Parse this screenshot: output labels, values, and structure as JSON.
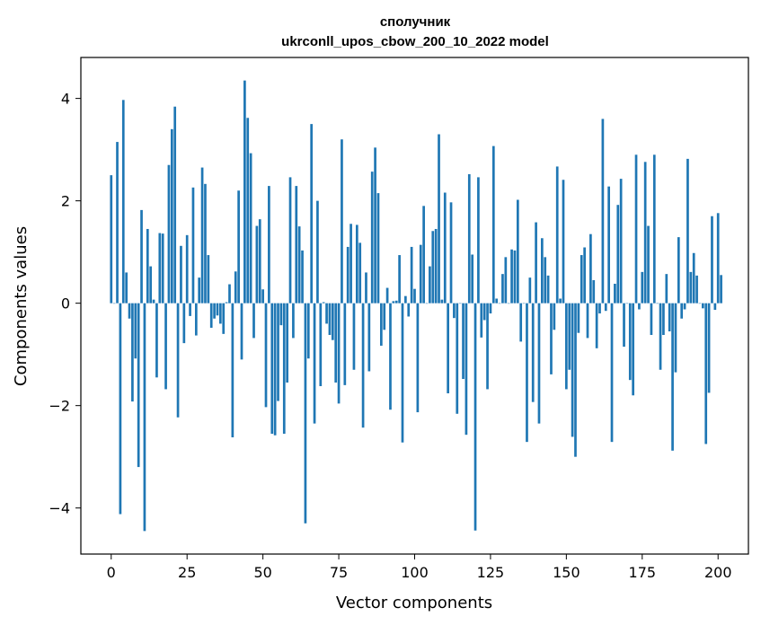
{
  "chart_data": {
    "type": "bar",
    "title": "сполучник",
    "subtitle": "ukrconll_upos_cbow_200_10_2022 model",
    "xlabel": "Vector components",
    "ylabel": "Components values",
    "xlim": [
      -10,
      210
    ],
    "ylim": [
      -4.9,
      4.8
    ],
    "xticks": [
      0,
      25,
      50,
      75,
      100,
      125,
      150,
      175,
      200
    ],
    "yticks": [
      -4,
      -2,
      0,
      2,
      4
    ],
    "grid": false,
    "bar_color": "#1f77b4",
    "series": [
      {
        "values": [
          2.5,
          0.0,
          3.15,
          -4.12,
          3.97,
          0.6,
          -0.3,
          -1.92,
          -1.08,
          -3.2,
          1.82,
          -4.45,
          1.45,
          0.72,
          0.07,
          -1.45,
          1.37,
          1.36,
          -1.68,
          2.7,
          3.4,
          3.84,
          -2.23,
          1.12,
          -0.78,
          1.33,
          -0.25,
          2.26,
          -0.63,
          0.5,
          2.65,
          2.33,
          0.94,
          -0.48,
          -0.3,
          -0.24,
          -0.4,
          -0.6,
          0.02,
          0.37,
          -2.62,
          0.62,
          2.2,
          -1.1,
          4.35,
          3.62,
          2.93,
          -0.68,
          1.51,
          1.64,
          0.27,
          -2.03,
          2.29,
          -2.55,
          -2.58,
          -1.91,
          -0.43,
          -2.55,
          -1.55,
          2.46,
          -0.68,
          2.29,
          1.5,
          1.03,
          -4.3,
          -1.08,
          3.5,
          -2.35,
          2.0,
          -1.62,
          0.02,
          -0.4,
          -0.62,
          -0.72,
          -1.55,
          -1.96,
          3.2,
          -1.6,
          1.1,
          1.55,
          -1.3,
          1.53,
          1.18,
          -2.43,
          0.6,
          -1.33,
          2.57,
          3.04,
          2.15,
          -0.83,
          -0.52,
          0.3,
          -2.08,
          0.04,
          0.05,
          0.94,
          -2.72,
          0.14,
          -0.26,
          1.1,
          0.28,
          -2.13,
          1.14,
          1.9,
          0.0,
          0.72,
          1.41,
          1.45,
          3.3,
          0.07,
          2.16,
          -1.76,
          1.97,
          -0.29,
          -2.16,
          0.0,
          -1.48,
          -2.57,
          2.52,
          0.95,
          -4.44,
          2.46,
          -0.67,
          -0.33,
          -1.68,
          -0.2,
          3.07,
          0.09,
          0.0,
          0.57,
          0.9,
          0.0,
          1.05,
          1.03,
          2.02,
          -0.75,
          0.0,
          -2.71,
          0.5,
          -1.93,
          1.58,
          -2.35,
          1.27,
          0.9,
          0.54,
          -1.39,
          -0.52,
          2.67,
          0.09,
          2.41,
          -1.68,
          -1.3,
          -2.61,
          -3.0,
          -0.58,
          0.94,
          1.09,
          -0.68,
          1.35,
          0.45,
          -0.88,
          -0.2,
          3.6,
          -0.15,
          2.28,
          -2.71,
          0.38,
          1.92,
          2.43,
          -0.85,
          0.0,
          -1.5,
          -1.8,
          2.9,
          -0.12,
          0.61,
          2.76,
          1.51,
          -0.62,
          2.9,
          0.0,
          -1.3,
          -0.62,
          0.57,
          -0.55,
          -2.88,
          -1.35,
          1.29,
          -0.3,
          -0.12,
          2.82,
          0.61,
          0.98,
          0.54,
          0.0,
          -0.1,
          -2.75,
          -1.75,
          1.7,
          -0.13,
          1.76,
          0.55
        ]
      }
    ]
  }
}
